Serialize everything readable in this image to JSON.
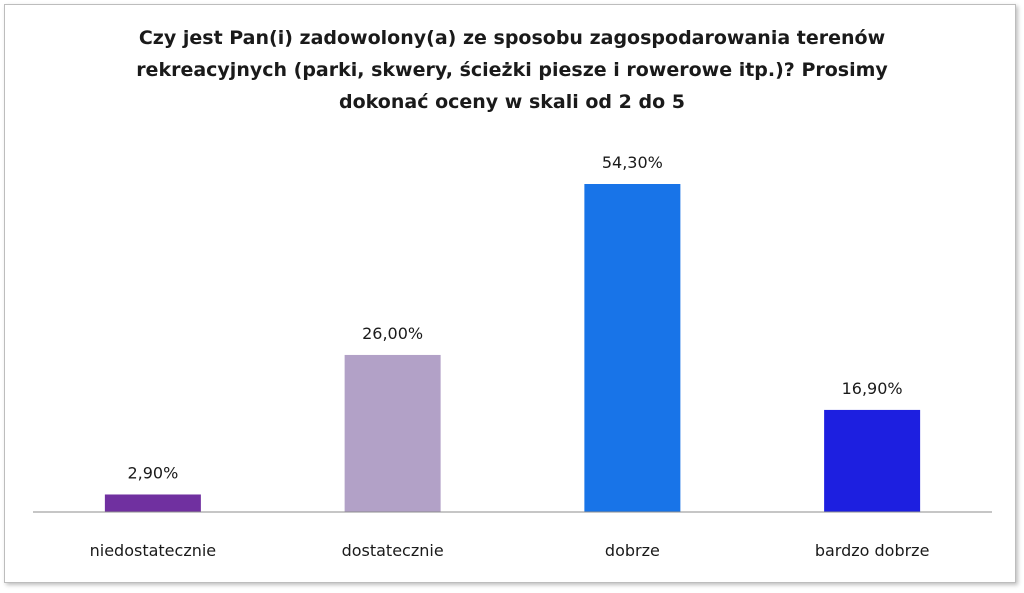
{
  "chart_data": {
    "type": "bar",
    "title_lines": [
      "Czy jest Pan(i) zadowolony(a) ze sposobu zagospodarowania terenów",
      "rekreacyjnych (parki, skwery, ścieżki piesze i rowerowe itp.)? Prosimy",
      "dokonać oceny w skali od 2 do 5"
    ],
    "categories": [
      "niedostatecznie",
      "dostatecznie",
      "dobrze",
      "bardzo dobrze"
    ],
    "values": [
      2.9,
      26.0,
      54.3,
      16.9
    ],
    "value_labels": [
      "2,90%",
      "26,00%",
      "54,30%",
      "16,90%"
    ],
    "colors": [
      "#7030a0",
      "#b2a1c7",
      "#1874e8",
      "#1d1fe0"
    ],
    "xlabel": "",
    "ylabel": "",
    "ylim": [
      0,
      60
    ],
    "grid": false,
    "legend": false
  }
}
